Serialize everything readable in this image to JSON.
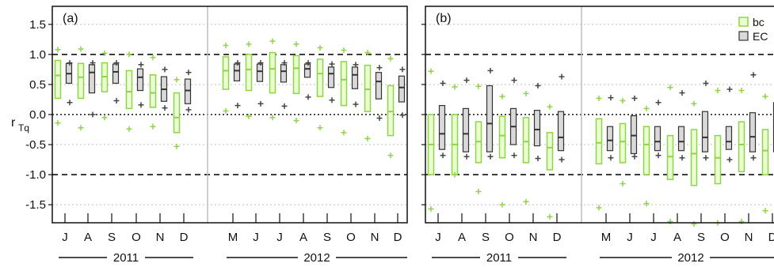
{
  "chart_data": {
    "type": "box",
    "y_axis": {
      "label_main": "r",
      "label_sub": "Tq",
      "range": [
        -1.8,
        1.8
      ],
      "ticks": [
        "1.5",
        "1.0",
        "0.5",
        "0.0",
        "-0.5",
        "-1.0",
        "-1.5"
      ],
      "tick_values": [
        1.5,
        1.0,
        0.5,
        0.0,
        -0.5,
        -1.0,
        -1.5
      ]
    },
    "reference_lines": {
      "dashed": [
        1.0,
        -1.0
      ],
      "dotted": [
        0.0
      ],
      "grid_dotted": [
        1.5,
        0.5,
        -0.5,
        -1.5
      ]
    },
    "years": [
      "2011",
      "2012"
    ],
    "legend": [
      "bc",
      "EC"
    ],
    "colors": {
      "bc": "#8ed641",
      "ec_fill": "#d9d9d9",
      "ec_stroke": "#333333",
      "grid": "#bfbfbf"
    },
    "panels": [
      {
        "label": "(a)",
        "months_2011": [
          "J",
          "A",
          "S",
          "O",
          "N",
          "D"
        ],
        "months_2012": [
          "M",
          "J",
          "J",
          "A",
          "S",
          "O",
          "N",
          "D"
        ],
        "bc": [
          {
            "q1": 0.27,
            "median": 0.65,
            "q3": 0.9,
            "upper": 1.08,
            "lower": -0.14
          },
          {
            "q1": 0.27,
            "median": 0.62,
            "q3": 0.85,
            "upper": 1.09,
            "lower": -0.22
          },
          {
            "q1": 0.38,
            "median": 0.63,
            "q3": 0.86,
            "upper": 1.02,
            "lower": -0.05
          },
          {
            "q1": 0.1,
            "median": 0.38,
            "q3": 0.73,
            "upper": 1.0,
            "lower": -0.24
          },
          {
            "q1": 0.12,
            "median": 0.36,
            "q3": 0.66,
            "upper": 0.95,
            "lower": -0.2
          },
          {
            "q1": -0.3,
            "median": -0.05,
            "q3": 0.36,
            "upper": 0.58,
            "lower": -0.53
          },
          {
            "q1": 0.42,
            "median": 0.73,
            "q3": 0.96,
            "upper": 1.15,
            "lower": 0.06
          },
          {
            "q1": 0.4,
            "median": 0.75,
            "q3": 1.0,
            "upper": 1.17,
            "lower": -0.03
          },
          {
            "q1": 0.36,
            "median": 0.76,
            "q3": 1.03,
            "upper": 1.22,
            "lower": -0.05
          },
          {
            "q1": 0.35,
            "median": 0.77,
            "q3": 0.98,
            "upper": 1.17,
            "lower": -0.1
          },
          {
            "q1": 0.3,
            "median": 0.68,
            "q3": 0.92,
            "upper": 1.11,
            "lower": -0.22
          },
          {
            "q1": 0.15,
            "median": 0.58,
            "q3": 0.88,
            "upper": 1.07,
            "lower": -0.3
          },
          {
            "q1": 0.05,
            "median": 0.42,
            "q3": 0.82,
            "upper": 1.03,
            "lower": -0.4
          },
          {
            "q1": -0.35,
            "median": 0.05,
            "q3": 0.48,
            "upper": 0.93,
            "lower": -0.68
          }
        ],
        "ec": [
          {
            "q1": 0.52,
            "median": 0.68,
            "q3": 0.85,
            "upper": 0.86,
            "lower": 0.2
          },
          {
            "q1": 0.36,
            "median": 0.7,
            "q3": 0.83,
            "upper": 0.86,
            "lower": 0.0
          },
          {
            "q1": 0.52,
            "median": 0.71,
            "q3": 0.84,
            "upper": 0.86,
            "lower": 0.23
          },
          {
            "q1": 0.4,
            "median": 0.62,
            "q3": 0.76,
            "upper": 0.83,
            "lower": 0.16
          },
          {
            "q1": 0.22,
            "median": 0.42,
            "q3": 0.63,
            "upper": 0.75,
            "lower": 0.11
          },
          {
            "q1": 0.18,
            "median": 0.4,
            "q3": 0.59,
            "upper": 0.7,
            "lower": 0.08
          },
          {
            "q1": 0.56,
            "median": 0.73,
            "q3": 0.84,
            "upper": 0.86,
            "lower": 0.15
          },
          {
            "q1": 0.55,
            "median": 0.72,
            "q3": 0.84,
            "upper": 0.86,
            "lower": 0.18
          },
          {
            "q1": 0.54,
            "median": 0.72,
            "q3": 0.83,
            "upper": 0.86,
            "lower": 0.14
          },
          {
            "q1": 0.62,
            "median": 0.76,
            "q3": 0.84,
            "upper": 0.86,
            "lower": 0.29
          },
          {
            "q1": 0.45,
            "median": 0.68,
            "q3": 0.79,
            "upper": 0.84,
            "lower": 0.24
          },
          {
            "q1": 0.43,
            "median": 0.66,
            "q3": 0.79,
            "upper": 0.83,
            "lower": 0.17
          },
          {
            "q1": 0.26,
            "median": 0.55,
            "q3": 0.7,
            "upper": 0.78,
            "lower": -0.06
          },
          {
            "q1": 0.21,
            "median": 0.45,
            "q3": 0.64,
            "upper": 0.75,
            "lower": -0.01
          }
        ]
      },
      {
        "label": "(b)",
        "months_2011": [
          "J",
          "A",
          "S",
          "O",
          "N",
          "D"
        ],
        "months_2012": [
          "M",
          "J",
          "J",
          "A",
          "S",
          "O",
          "N",
          "D"
        ],
        "bc": [
          {
            "q1": -1.0,
            "median": -0.5,
            "q3": 0.0,
            "upper": 0.72,
            "lower": -1.57
          },
          {
            "q1": -1.0,
            "median": -0.5,
            "q3": 0.0,
            "upper": 0.46,
            "lower": -1.0
          },
          {
            "q1": -0.8,
            "median": -0.45,
            "q3": -0.12,
            "upper": 0.47,
            "lower": -1.28
          },
          {
            "q1": -0.72,
            "median": -0.35,
            "q3": -0.03,
            "upper": 0.3,
            "lower": -1.5
          },
          {
            "q1": -0.8,
            "median": -0.45,
            "q3": -0.05,
            "upper": 0.35,
            "lower": -1.45
          },
          {
            "q1": -0.92,
            "median": -0.55,
            "q3": -0.3,
            "upper": 0.13,
            "lower": -1.7
          },
          {
            "q1": -0.82,
            "median": -0.47,
            "q3": -0.07,
            "upper": 0.27,
            "lower": -1.55
          },
          {
            "q1": -0.8,
            "median": -0.45,
            "q3": -0.15,
            "upper": 0.23,
            "lower": -1.15
          },
          {
            "q1": -1.0,
            "median": -0.5,
            "q3": -0.2,
            "upper": 0.1,
            "lower": -1.48
          },
          {
            "q1": -1.08,
            "median": -0.7,
            "q3": -0.35,
            "upper": 0.45,
            "lower": -1.78
          },
          {
            "q1": -1.18,
            "median": -0.65,
            "q3": -0.25,
            "upper": 0.18,
            "lower": -1.82
          },
          {
            "q1": -1.15,
            "median": -0.72,
            "q3": -0.35,
            "upper": 0.4,
            "lower": -1.8
          },
          {
            "q1": -0.95,
            "median": -0.5,
            "q3": -0.12,
            "upper": 0.4,
            "lower": -1.78
          },
          {
            "q1": -1.0,
            "median": -0.6,
            "q3": -0.25,
            "upper": 0.3,
            "lower": -1.6
          }
        ],
        "ec": [
          {
            "q1": -0.58,
            "median": -0.32,
            "q3": 0.15,
            "upper": 0.52,
            "lower": -0.68
          },
          {
            "q1": -0.62,
            "median": -0.32,
            "q3": 0.1,
            "upper": 0.57,
            "lower": -0.7
          },
          {
            "q1": -0.62,
            "median": -0.15,
            "q3": 0.48,
            "upper": 0.73,
            "lower": -0.7
          },
          {
            "q1": -0.5,
            "median": -0.2,
            "q3": 0.1,
            "upper": 0.57,
            "lower": -0.68
          },
          {
            "q1": -0.52,
            "median": -0.25,
            "q3": 0.07,
            "upper": 0.48,
            "lower": -0.73
          },
          {
            "q1": -0.6,
            "median": -0.38,
            "q3": 0.05,
            "upper": 0.63,
            "lower": -0.75
          },
          {
            "q1": -0.6,
            "median": -0.43,
            "q3": -0.2,
            "upper": 0.28,
            "lower": -0.72
          },
          {
            "q1": -0.65,
            "median": -0.35,
            "q3": -0.02,
            "upper": 0.27,
            "lower": -0.7
          },
          {
            "q1": -0.6,
            "median": -0.45,
            "q3": -0.2,
            "upper": 0.2,
            "lower": -0.68
          },
          {
            "q1": -0.6,
            "median": -0.45,
            "q3": -0.2,
            "upper": 0.36,
            "lower": -0.72
          },
          {
            "q1": -0.62,
            "median": -0.38,
            "q3": 0.05,
            "upper": 0.52,
            "lower": -0.72
          },
          {
            "q1": -0.58,
            "median": -0.45,
            "q3": -0.2,
            "upper": 0.42,
            "lower": -0.75
          },
          {
            "q1": -0.62,
            "median": -0.37,
            "q3": 0.03,
            "upper": 0.66,
            "lower": -0.72
          },
          {
            "q1": -0.62,
            "median": -0.4,
            "q3": 0.2,
            "upper": 0.7,
            "lower": -0.7
          }
        ]
      }
    ]
  }
}
